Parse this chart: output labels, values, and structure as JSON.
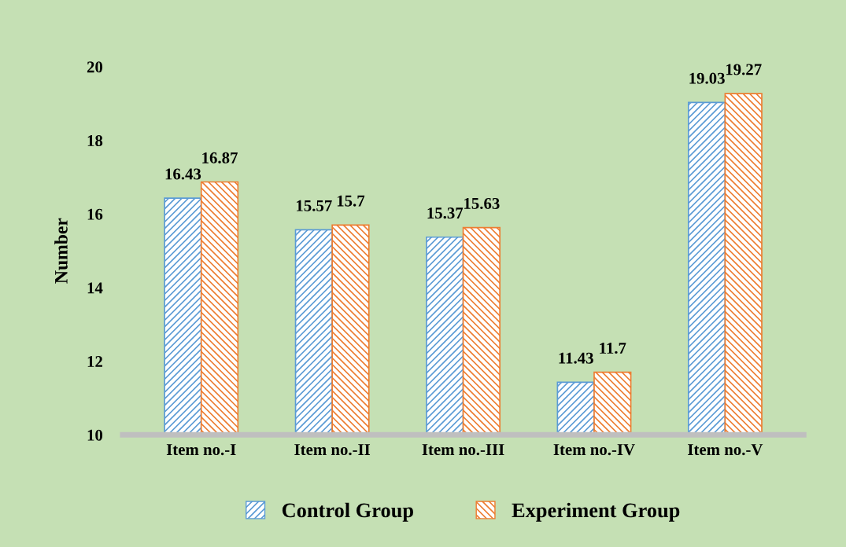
{
  "chart_data": {
    "type": "bar",
    "ylabel": "Number",
    "categories": [
      "Item no.-I",
      "Item no.-II",
      "Item no.-III",
      "Item no.-IV",
      "Item no.-V"
    ],
    "series": [
      {
        "name": "Control Group",
        "color": "#5b9bd5",
        "values": [
          16.43,
          15.57,
          15.37,
          11.43,
          19.03
        ]
      },
      {
        "name": "Experiment Group",
        "color": "#ed7d31",
        "values": [
          16.87,
          15.7,
          15.63,
          11.7,
          19.27
        ]
      }
    ],
    "ylim": [
      10,
      20
    ],
    "yticks": [
      10,
      12,
      14,
      16,
      18,
      20
    ],
    "data_labels": true,
    "legend": "bottom",
    "grid": false
  }
}
